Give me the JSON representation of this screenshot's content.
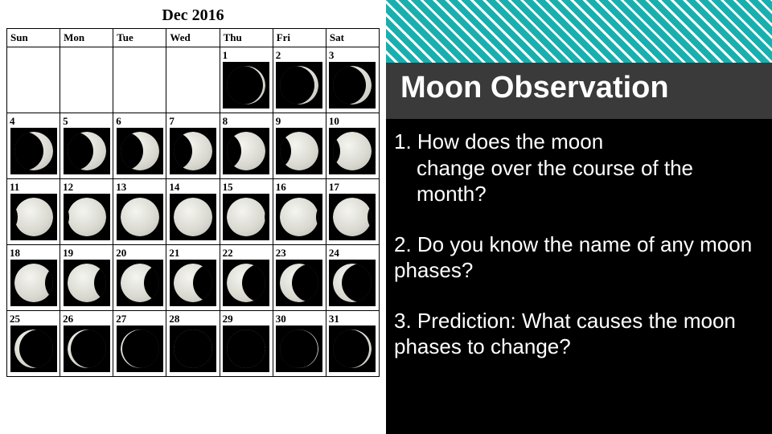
{
  "calendar": {
    "title": "Dec 2016",
    "day_headers": [
      "Sun",
      "Mon",
      "Tue",
      "Wed",
      "Thu",
      "Fri",
      "Sat"
    ],
    "blanks_before": 4,
    "days": [
      {
        "n": 1,
        "phase": 0.06,
        "waxing": true
      },
      {
        "n": 2,
        "phase": 0.1,
        "waxing": true
      },
      {
        "n": 3,
        "phase": 0.16,
        "waxing": true
      },
      {
        "n": 4,
        "phase": 0.24,
        "waxing": true
      },
      {
        "n": 5,
        "phase": 0.32,
        "waxing": true
      },
      {
        "n": 6,
        "phase": 0.42,
        "waxing": true
      },
      {
        "n": 7,
        "phase": 0.52,
        "waxing": true
      },
      {
        "n": 8,
        "phase": 0.62,
        "waxing": true
      },
      {
        "n": 9,
        "phase": 0.72,
        "waxing": true
      },
      {
        "n": 10,
        "phase": 0.82,
        "waxing": true
      },
      {
        "n": 11,
        "phase": 0.9,
        "waxing": true
      },
      {
        "n": 12,
        "phase": 0.96,
        "waxing": true
      },
      {
        "n": 13,
        "phase": 0.99,
        "waxing": true
      },
      {
        "n": 14,
        "phase": 1.0,
        "waxing": true
      },
      {
        "n": 15,
        "phase": 0.98,
        "waxing": false
      },
      {
        "n": 16,
        "phase": 0.94,
        "waxing": false
      },
      {
        "n": 17,
        "phase": 0.88,
        "waxing": false
      },
      {
        "n": 18,
        "phase": 0.8,
        "waxing": false
      },
      {
        "n": 19,
        "phase": 0.7,
        "waxing": false
      },
      {
        "n": 20,
        "phase": 0.6,
        "waxing": false
      },
      {
        "n": 21,
        "phase": 0.5,
        "waxing": false
      },
      {
        "n": 22,
        "phase": 0.4,
        "waxing": false
      },
      {
        "n": 23,
        "phase": 0.3,
        "waxing": false
      },
      {
        "n": 24,
        "phase": 0.22,
        "waxing": false
      },
      {
        "n": 25,
        "phase": 0.14,
        "waxing": false
      },
      {
        "n": 26,
        "phase": 0.08,
        "waxing": false
      },
      {
        "n": 27,
        "phase": 0.04,
        "waxing": false
      },
      {
        "n": 28,
        "phase": 0.01,
        "waxing": false
      },
      {
        "n": 29,
        "phase": 0.0,
        "waxing": true
      },
      {
        "n": 30,
        "phase": 0.03,
        "waxing": true
      },
      {
        "n": 31,
        "phase": 0.08,
        "waxing": true
      }
    ],
    "colors": {
      "cell_bg": "#ffffff",
      "moon_bg": "#000000",
      "moon_lit": "#e8e8e0",
      "border": "#000000"
    }
  },
  "banner": {
    "title": "Moon Observation",
    "stripe_color": "#1aafaf",
    "stripe_bg": "#ffffff",
    "banner_bg": "#3a3a3a",
    "title_color": "#ffffff",
    "title_fontsize": 38
  },
  "questions": {
    "q1_first": "1. How does the moon",
    "q1_rest": "change over the course of the month?",
    "q2": "2. Do you know the name of any moon phases?",
    "q3": "3. Prediction: What causes the moon phases to change?",
    "text_color": "#ffffff",
    "fontsize": 26
  }
}
